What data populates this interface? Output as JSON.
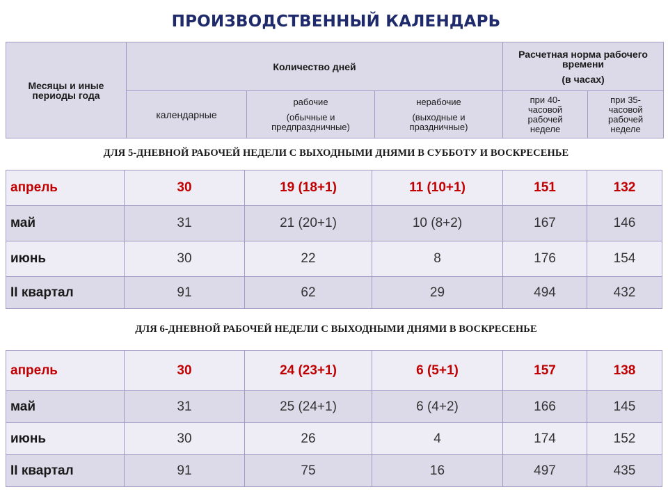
{
  "title": "ПРОИЗВОДСТВЕННЫЙ КАЛЕНДАРЬ",
  "header": {
    "periods": "Месяцы и иные периоды года",
    "days_count": "Количество дней",
    "norm_title": "Расчетная норма рабочего времени",
    "norm_unit": "(в часах)",
    "calendar": "календарные",
    "working": "рабочие",
    "working_sub": "(обычные  и предпраздничные)",
    "nonworking": "нерабочие",
    "nonworking_sub": "(выходные  и праздничные)",
    "h40": "при 40-часовой рабочей неделе",
    "h35": "при 35-часовой рабочей неделе"
  },
  "sections": [
    {
      "heading": "ДЛЯ 5-ДНЕВНОЙ РАБОЧЕЙ НЕДЕЛИ С ВЫХОДНЫМИ ДНЯМИ В СУББОТУ И ВОСКРЕСЕНЬЕ",
      "rows": [
        {
          "period": "апрель",
          "calendar": "30",
          "working": "19 (18+1)",
          "nonworking": "11 (10+1)",
          "h40": "151",
          "h35": "132"
        },
        {
          "period": "май",
          "calendar": "31",
          "working": "21 (20+1)",
          "nonworking": "10 (8+2)",
          "h40": "167",
          "h35": "146"
        },
        {
          "period": "июнь",
          "calendar": "30",
          "working": "22",
          "nonworking": "8",
          "h40": "176",
          "h35": "154"
        },
        {
          "period": "II квартал",
          "calendar": "91",
          "working": "62",
          "nonworking": "29",
          "h40": "494",
          "h35": "432"
        }
      ]
    },
    {
      "heading": "ДЛЯ 6-ДНЕВНОЙ РАБОЧЕЙ НЕДЕЛИ С ВЫХОДНЫМИ ДНЯМИ В ВОСКРЕСЕНЬЕ",
      "rows": [
        {
          "period": "апрель",
          "calendar": "30",
          "working": "24 (23+1)",
          "nonworking": "6 (5+1)",
          "h40": "157",
          "h35": "138"
        },
        {
          "period": "май",
          "calendar": "31",
          "working": "25 (24+1)",
          "nonworking": "6 (4+2)",
          "h40": "166",
          "h35": "145"
        },
        {
          "period": "июнь",
          "calendar": "30",
          "working": "26",
          "nonworking": "4",
          "h40": "174",
          "h35": "152"
        },
        {
          "period": "II квартал",
          "calendar": "91",
          "working": "75",
          "nonworking": "16",
          "h40": "497",
          "h35": "435"
        }
      ]
    }
  ],
  "colors": {
    "highlight": "#c00000",
    "title": "#1f2a6b",
    "header_bg": "#dcd9e8",
    "row_light": "#eeedf6",
    "border": "#9e9bc6"
  }
}
